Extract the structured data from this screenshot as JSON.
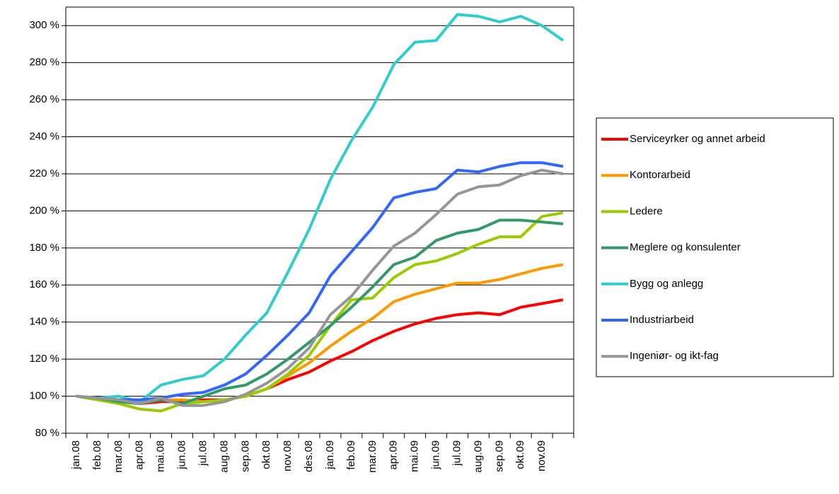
{
  "chart_data": {
    "type": "line",
    "categories": [
      "jan.08",
      "feb.08",
      "mar.08",
      "apr.08",
      "mai.08",
      "jun.08",
      "jul.08",
      "aug.08",
      "sep.08",
      "okt.08",
      "nov.08",
      "des.08",
      "jan.09",
      "feb.09",
      "mar.09",
      "apr.09",
      "mai.09",
      "jun.09",
      "jul.09",
      "aug.09",
      "sep.09",
      "okt.09",
      "nov.09",
      null
    ],
    "series": [
      {
        "name": "Serviceyrker og annet arbeid",
        "color": "#ff0000",
        "values": [
          100,
          99,
          97,
          96,
          97,
          97,
          98,
          98,
          100,
          104,
          109,
          113,
          119,
          124,
          130,
          135,
          139,
          142,
          144,
          145,
          144,
          148,
          150,
          152
        ]
      },
      {
        "name": "Kontorarbeid",
        "color": "#ff9900",
        "values": [
          100,
          99,
          98,
          97,
          98,
          98,
          97,
          98,
          100,
          104,
          111,
          118,
          127,
          135,
          142,
          151,
          155,
          158,
          161,
          161,
          163,
          166,
          169,
          171
        ]
      },
      {
        "name": "Ledere",
        "color": "#99cc00",
        "values": [
          100,
          98,
          96,
          93,
          92,
          96,
          97,
          98,
          100,
          104,
          112,
          122,
          138,
          152,
          153,
          164,
          171,
          173,
          177,
          182,
          186,
          186,
          197,
          199
        ]
      },
      {
        "name": "Meglere og konsulenter",
        "color": "#339966",
        "values": [
          100,
          99,
          97,
          96,
          98,
          96,
          100,
          104,
          106,
          112,
          120,
          129,
          138,
          148,
          159,
          171,
          175,
          184,
          188,
          190,
          195,
          195,
          194,
          193
        ]
      },
      {
        "name": "Bygg og anlegg",
        "color": "#33cccc",
        "values": [
          100,
          99,
          100,
          97,
          106,
          109,
          111,
          120,
          133,
          145,
          167,
          190,
          217,
          238,
          256,
          279,
          291,
          292,
          306,
          305,
          302,
          305,
          300,
          292
        ]
      },
      {
        "name": "Industriarbeid",
        "color": "#3366ff",
        "values": [
          100,
          99,
          98,
          98,
          99,
          101,
          102,
          106,
          112,
          122,
          133,
          145,
          165,
          178,
          191,
          207,
          210,
          212,
          222,
          221,
          224,
          226,
          226,
          224
        ]
      },
      {
        "name": "Ingeniør- og ikt-fag",
        "color": "#969696",
        "values": [
          100,
          99,
          98,
          96,
          99,
          95,
          95,
          97,
          101,
          107,
          115,
          126,
          144,
          154,
          168,
          181,
          188,
          198,
          209,
          213,
          214,
          219,
          222,
          220
        ]
      }
    ],
    "ylim": [
      80,
      310
    ],
    "yticks": [
      {
        "value": 80,
        "label": "80 %"
      },
      {
        "value": 100,
        "label": "100 %"
      },
      {
        "value": 120,
        "label": "120 %"
      },
      {
        "value": 140,
        "label": "140 %"
      },
      {
        "value": 160,
        "label": "160 %"
      },
      {
        "value": 180,
        "label": "180 %"
      },
      {
        "value": 200,
        "label": "200 %"
      },
      {
        "value": 220,
        "label": "220 %"
      },
      {
        "value": 240,
        "label": "240 %"
      },
      {
        "value": 260,
        "label": "260 %"
      },
      {
        "value": 280,
        "label": "280 %"
      },
      {
        "value": 300,
        "label": "300 %"
      }
    ],
    "grid": true,
    "legend": "right"
  }
}
